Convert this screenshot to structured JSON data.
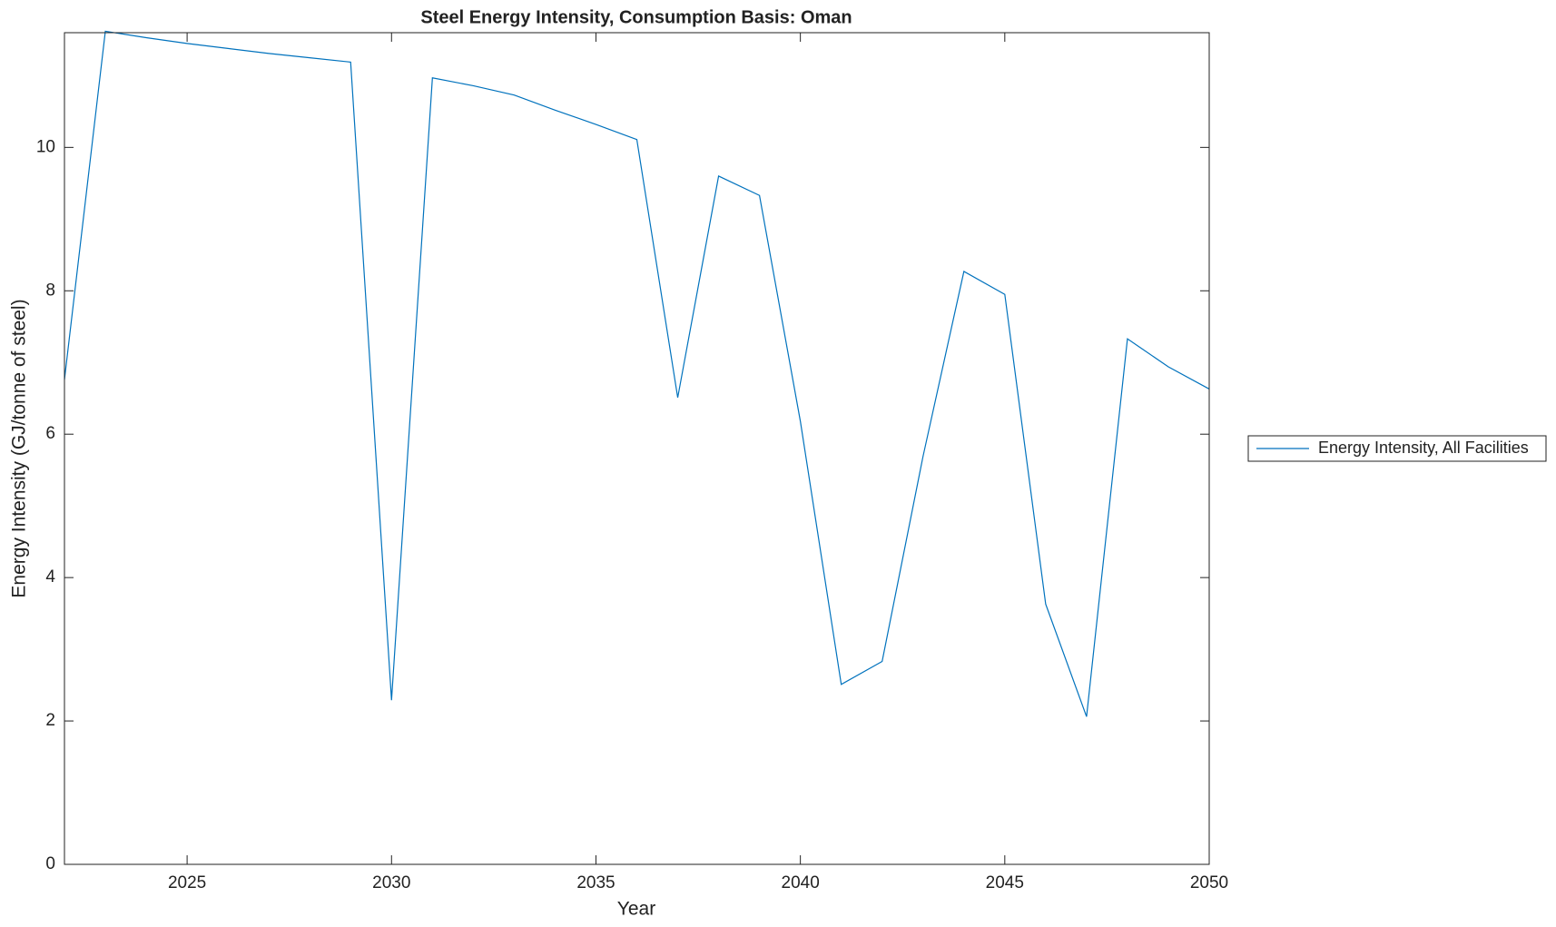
{
  "chart_data": {
    "type": "line",
    "title": "Steel Energy Intensity, Consumption Basis: Oman",
    "x_label": "Year",
    "y_label": "Energy Intensity (GJ/tonne of steel)",
    "x": [
      2022,
      2023,
      2024,
      2025,
      2026,
      2027,
      2028,
      2029,
      2030,
      2031,
      2032,
      2033,
      2034,
      2035,
      2036,
      2037,
      2038,
      2039,
      2040,
      2041,
      2042,
      2043,
      2044,
      2045,
      2046,
      2047,
      2048,
      2049,
      2050
    ],
    "series": [
      {
        "name": "Energy Intensity, All Facilities",
        "color": "#0072bd",
        "values": [
          6.76,
          11.62,
          11.53,
          11.45,
          11.38,
          11.31,
          11.25,
          11.19,
          2.29,
          10.97,
          10.86,
          10.73,
          10.52,
          10.32,
          10.11,
          6.51,
          9.6,
          9.33,
          6.18,
          2.51,
          2.83,
          5.69,
          8.27,
          7.95,
          3.63,
          2.06,
          7.33,
          6.94,
          6.63
        ]
      }
    ],
    "xlim": [
      2022,
      2050
    ],
    "xticks": [
      2025,
      2030,
      2035,
      2040,
      2045,
      2050
    ],
    "ylim": [
      0,
      11.6
    ],
    "yticks": [
      0,
      2,
      4,
      6,
      8,
      10
    ],
    "legend": "outside-right"
  }
}
